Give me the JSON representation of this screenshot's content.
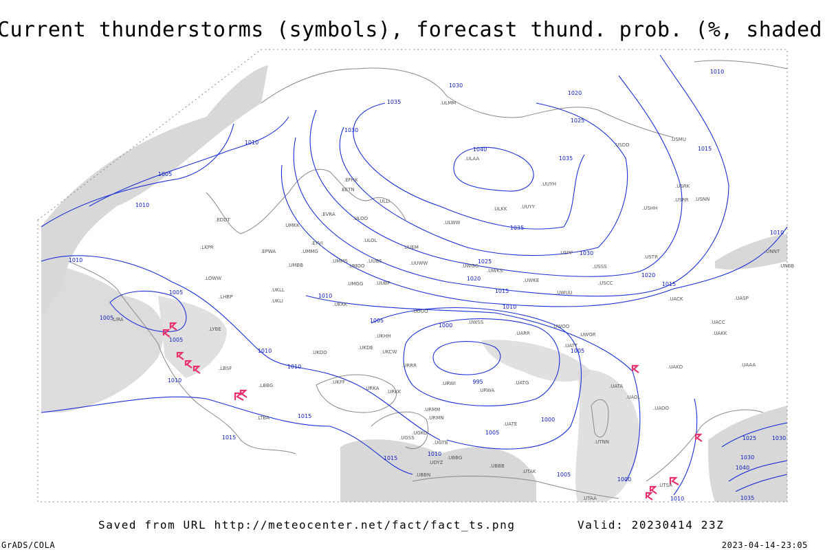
{
  "title": "Current thunderstorms (symbols), forecast thund. prob. (%, shaded)",
  "footer": {
    "source": "Saved from URL http://meteocenter.net/fact/fact_ts.png",
    "valid": "Valid: 20230414 23Z",
    "credit": "GrADS/COLA",
    "timestamp": "2023-04-14-23:05"
  },
  "isobar_labels": [
    "1030",
    "1035",
    "1030",
    "1010",
    "1005",
    "1010",
    "1010",
    "1005",
    "1005",
    "1005",
    "1010",
    "1010",
    "1010",
    "1010",
    "1005",
    "1000",
    "995",
    "1000",
    "1005",
    "1005",
    "1010",
    "1015",
    "1020",
    "1025",
    "1030",
    "1035",
    "1035",
    "1040",
    "1025",
    "1020",
    "1010",
    "1015",
    "1010",
    "1015",
    "1020",
    "1015",
    "1015",
    "1015",
    "1010",
    "1005",
    "1000",
    "1010",
    "1035",
    "1030",
    "1025",
    "1030",
    "1040"
  ],
  "stations": [
    ".ULMM",
    ".ULAA",
    ".UUYH",
    ".ULKK",
    ".UUYY",
    ".ULWW",
    ".UUEM",
    ".UUWW",
    ".UWGG",
    ".UWKS",
    ".UWKE",
    ".UWUU",
    ".USPP",
    ".USSS",
    ".USCC",
    ".USTR",
    ".USHH",
    ".USRK",
    ".USRR",
    ".USNN",
    ".USDD",
    ".USMU",
    ".UNBB",
    ".UNNT",
    ".UACK",
    ".UASP",
    ".UACC",
    ".UAKK",
    ".UAAA",
    ".UAKD",
    ".UAOO",
    ".UAOL",
    ".UATA",
    ".UATG",
    ".UATE",
    ".UARR",
    ".UATT",
    ".UWOO",
    ".UWOR",
    ".UWSS",
    ".UBBB",
    ".UGTB",
    ".UBBG",
    ".UDYZ",
    ".UBBN",
    ".UGKO",
    ".UGSS",
    ".URMM",
    ".URMN",
    ".UUOO",
    ".UKKK",
    ".UKLL",
    ".UKLI",
    ".UKHH",
    ".UKDE",
    ".UKCW",
    ".UKOO",
    ".UKFF",
    ".URKA",
    ".URKK",
    ".EYVI",
    ".EVRA",
    ".EETN",
    ".EFHK",
    ".ULLI",
    ".ULOO",
    ".ULOL",
    ".UMMG",
    ".UMMS",
    ".UMOO",
    ".UUBS",
    ".UMGG",
    ".UUBP",
    ".EPWA",
    ".EDDT",
    ".LKPR",
    ".LOWW",
    ".LHBP",
    ".LYBE",
    ".LBSF",
    ".LBBG",
    ".LTBA",
    ".LIRA",
    ".UMKK",
    ".UMBB",
    ".URRR",
    ".URWI",
    ".URWA",
    ".UTAK",
    ".UTAA",
    ".UTSA",
    ".UTNN"
  ]
}
